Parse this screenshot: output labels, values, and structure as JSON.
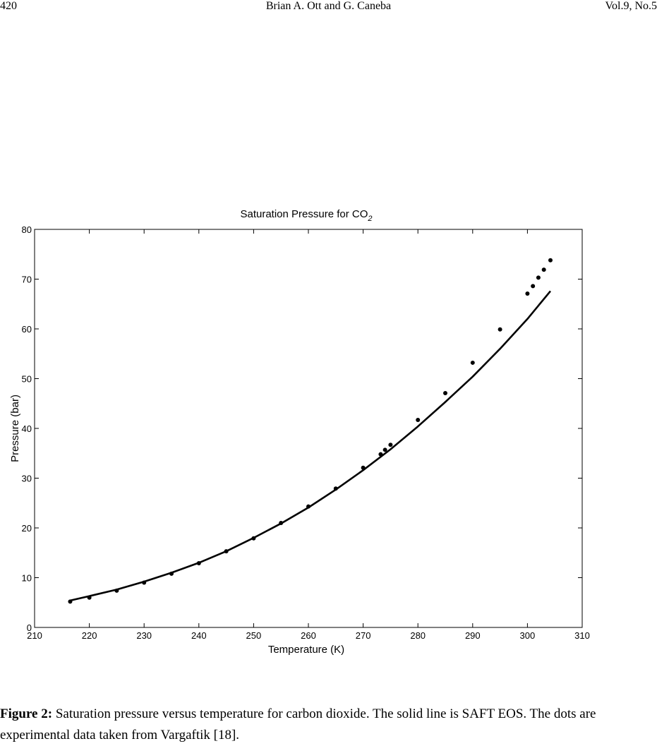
{
  "header": {
    "page_number": "420",
    "authors": "Brian A. Ott and G. Caneba",
    "volume": "Vol.9, No.5"
  },
  "figure": {
    "caption_label": "Figure 2:",
    "caption_text": "Saturation pressure versus temperature for carbon dioxide.  The solid line is SAFT EOS.  The dots are experimental data taken from Vargaftik [18]."
  },
  "chart_data": {
    "type": "scatter",
    "title": "Saturation Pressure for CO",
    "title_subscript": "2",
    "xlabel": "Temperature (K)",
    "ylabel": "Pressure (bar)",
    "xlim": [
      210,
      310
    ],
    "ylim": [
      0,
      80
    ],
    "xticks": [
      210,
      220,
      230,
      240,
      250,
      260,
      270,
      280,
      290,
      300,
      310
    ],
    "yticks": [
      0,
      10,
      20,
      30,
      40,
      50,
      60,
      70,
      80
    ],
    "grid": false,
    "series": [
      {
        "kind": "line",
        "x": [
          216.5,
          220,
          225,
          230,
          235,
          240,
          245,
          250,
          255,
          260,
          265,
          270,
          275,
          280,
          285,
          290,
          295,
          300,
          304.2
        ],
        "y": [
          5.4,
          6.3,
          7.6,
          9.2,
          11.0,
          13.0,
          15.3,
          18.0,
          20.9,
          24.1,
          27.7,
          31.6,
          35.8,
          40.4,
          45.3,
          50.4,
          56.0,
          62.0,
          67.6
        ]
      },
      {
        "kind": "points",
        "x": [
          216.5,
          220,
          225,
          230,
          235,
          240,
          245,
          250,
          255,
          260,
          265,
          270,
          273.2,
          274,
          275,
          280,
          285,
          290,
          295,
          300,
          301,
          302,
          303,
          304.2
        ],
        "y": [
          5.2,
          6.0,
          7.4,
          9.0,
          10.8,
          12.9,
          15.3,
          17.9,
          21.0,
          24.3,
          27.9,
          32.1,
          34.8,
          35.7,
          36.7,
          41.7,
          47.1,
          53.2,
          59.9,
          67.1,
          68.6,
          70.3,
          71.9,
          73.8
        ]
      }
    ]
  }
}
